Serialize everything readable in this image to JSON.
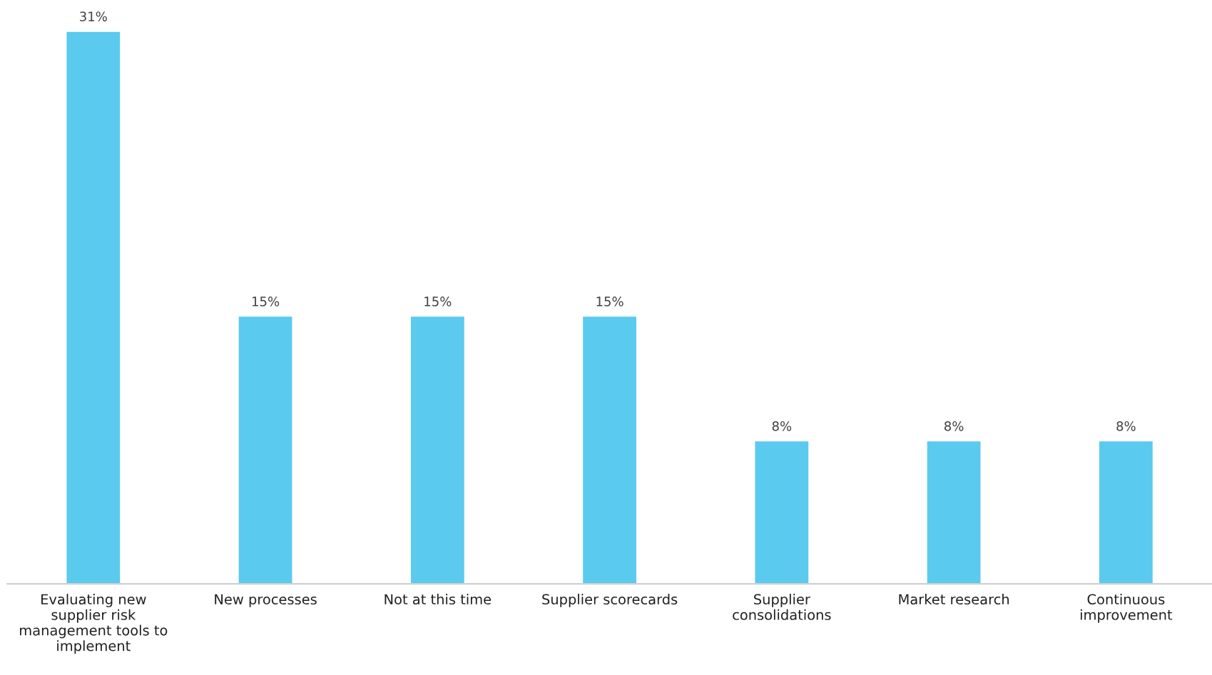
{
  "chart_data": {
    "type": "bar",
    "categories": [
      "Evaluating new\nsupplier risk\nmanagement tools to\nimplement",
      "New processes",
      "Not at this time",
      "Supplier scorecards",
      "Supplier\nconsolidations",
      "Market research",
      "Continuous\nimprovement"
    ],
    "values": [
      31,
      15,
      15,
      15,
      8,
      8,
      8
    ],
    "value_labels": [
      "31%",
      "15%",
      "15%",
      "15%",
      "8%",
      "8%",
      "8%"
    ],
    "color": "#5bcaef",
    "grid": false,
    "legend": false
  }
}
